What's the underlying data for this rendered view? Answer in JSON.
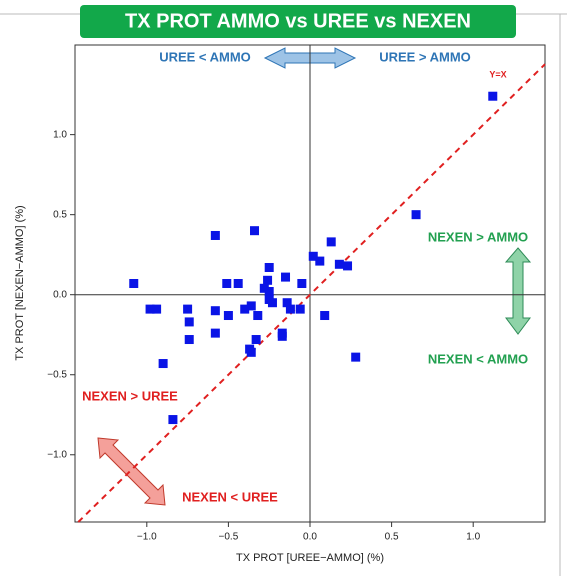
{
  "chart_data": {
    "type": "scatter",
    "title": "TX PROT AMMO vs UREE vs NEXEN",
    "x_label": "TX PROT [UREE−AMMO] (%)",
    "y_label": "TX PROT [NEXEN−AMMO] (%)",
    "annotations": [
      "UREE < AMMO",
      "UREE > AMMO",
      "Y=X",
      "NEXEN > AMMO",
      "NEXEN <  AMMO",
      "NEXEN > UREE",
      "NEXEN < UREE"
    ],
    "xlim": [
      -1.44,
      1.44
    ],
    "ylim": [
      -1.42,
      1.56
    ],
    "xticks": [
      {
        "value": -1,
        "label": "−1.0"
      },
      {
        "value": -0.5,
        "label": "−0.5"
      },
      {
        "value": 0,
        "label": "0.0"
      },
      {
        "value": 0.5,
        "label": "0.5"
      },
      {
        "value": 1,
        "label": "1.0"
      }
    ],
    "yticks": [
      {
        "value": -1,
        "label": "−1.0"
      },
      {
        "value": -0.5,
        "label": "−0.5"
      },
      {
        "value": 0,
        "label": "0.0"
      },
      {
        "value": 0.5,
        "label": "0.5"
      },
      {
        "value": 1,
        "label": "1.0"
      }
    ],
    "color": "#0a14e6",
    "x": [
      1.12,
      0.65,
      -1.08,
      -0.58,
      -0.34,
      0.13,
      0.02,
      0.06,
      0.18,
      0.23,
      -0.25,
      -0.15,
      -0.51,
      -0.44,
      -0.26,
      -0.05,
      -0.28,
      -0.25,
      -0.98,
      -0.94,
      -0.75,
      -0.58,
      -0.4,
      -0.36,
      -0.14,
      -0.06,
      -0.23,
      -0.74,
      -0.5,
      -0.32,
      -0.25,
      -0.12,
      -0.74,
      -0.58,
      -0.33,
      -0.17,
      -0.17,
      -0.37,
      -0.36,
      0.09,
      0.28,
      -0.9,
      -0.84
    ],
    "values": [
      1.24,
      0.5,
      0.07,
      0.37,
      0.4,
      0.33,
      0.24,
      0.21,
      0.19,
      0.18,
      0.17,
      0.11,
      0.07,
      0.07,
      0.09,
      0.07,
      0.04,
      0.02,
      -0.09,
      -0.09,
      -0.09,
      -0.1,
      -0.09,
      -0.07,
      -0.05,
      -0.09,
      -0.05,
      -0.17,
      -0.13,
      -0.13,
      -0.03,
      -0.09,
      -0.28,
      -0.24,
      -0.28,
      -0.24,
      -0.26,
      -0.34,
      -0.36,
      -0.13,
      -0.39,
      -0.43,
      -0.78
    ]
  }
}
